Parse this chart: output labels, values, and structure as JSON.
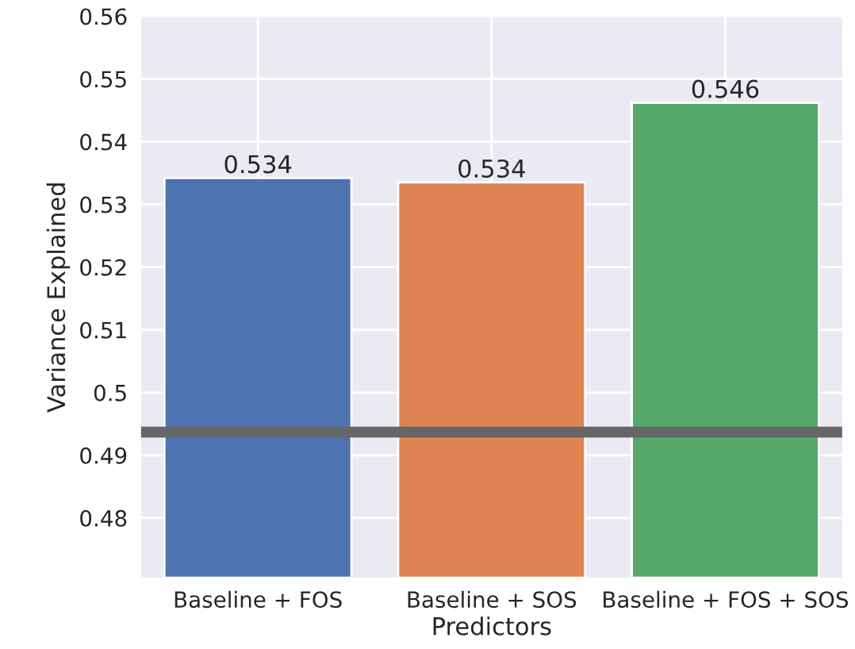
{
  "chart_data": {
    "type": "bar",
    "xlabel": "Predictors",
    "ylabel": "Variance Explained",
    "categories": [
      "Baseline + FOS",
      "Baseline + SOS",
      "Baseline + FOS + SOS"
    ],
    "values": [
      0.5342,
      0.5335,
      0.5462
    ],
    "value_labels": [
      "0.534",
      "0.534",
      "0.546"
    ],
    "colors": [
      "#4c72b0",
      "#dd8452",
      "#55a868"
    ],
    "ylim": [
      0.4705,
      0.56
    ],
    "yticks": [
      0.48,
      0.49,
      0.5,
      0.51,
      0.52,
      0.53,
      0.54,
      0.55,
      0.56
    ],
    "ref_lines": [
      {
        "axis": "y",
        "value": 0.4937,
        "label": null,
        "color": "#666666"
      }
    ],
    "grid": true
  }
}
